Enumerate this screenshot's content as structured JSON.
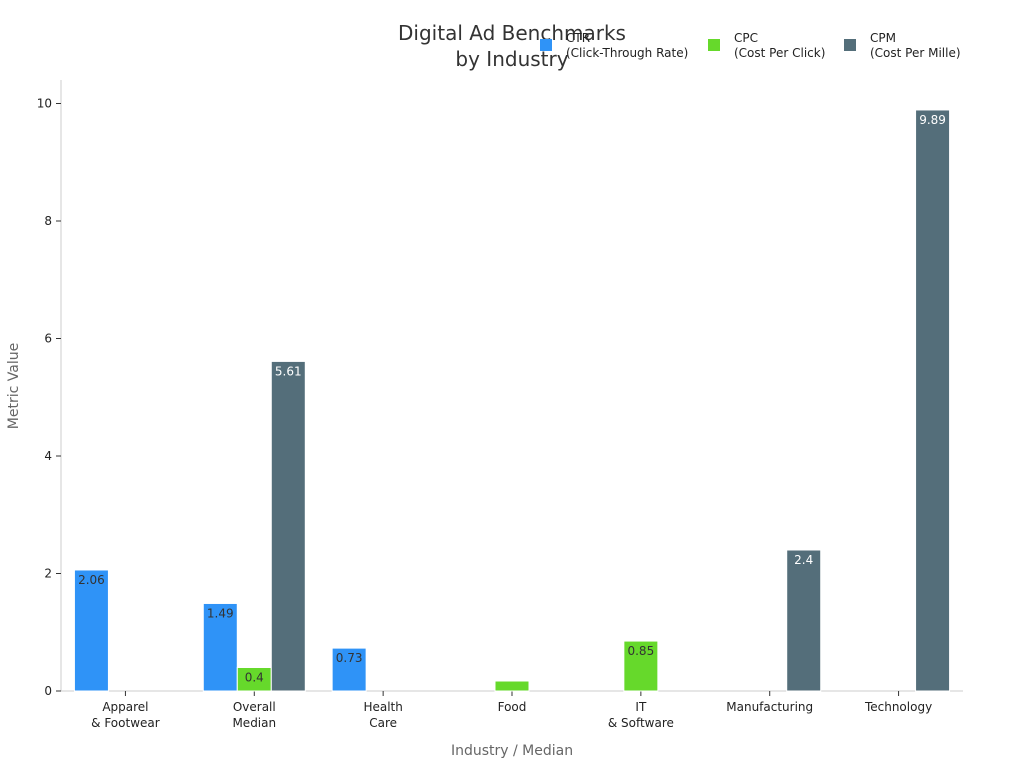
{
  "chart_data": {
    "type": "bar",
    "title": [
      "Digital Ad Benchmarks",
      "by Industry"
    ],
    "xlabel": "Industry / Median",
    "ylabel": "Metric Value",
    "ylim": [
      0,
      10.4
    ],
    "yticks": [
      0,
      2,
      4,
      6,
      8,
      10
    ],
    "grid": false,
    "legend_position": "top-right",
    "categories": [
      [
        "Apparel",
        "& Footwear"
      ],
      [
        "Overall",
        "Median"
      ],
      [
        "Health",
        "Care"
      ],
      [
        "Food"
      ],
      [
        "IT",
        "& Software"
      ],
      [
        "Manufacturing"
      ],
      [
        "Technology"
      ]
    ],
    "series": [
      {
        "name": [
          "CTR",
          "(Click-Through Rate)"
        ],
        "color": "#2F93F7",
        "label_color": "#333333",
        "values": [
          2.06,
          1.49,
          0.73,
          null,
          null,
          null,
          null
        ]
      },
      {
        "name": [
          "CPC",
          "(Cost Per Click)"
        ],
        "color": "#66D92B",
        "label_color": "#333333",
        "values": [
          null,
          0.4,
          null,
          0.17,
          0.85,
          null,
          null
        ]
      },
      {
        "name": [
          "CPM",
          "(Cost Per Mille)"
        ],
        "color": "#546E7A",
        "label_color": "#ffffff",
        "values": [
          null,
          5.61,
          null,
          null,
          null,
          2.4,
          9.89
        ]
      }
    ],
    "data_labels": [
      [
        "2.06",
        "1.49",
        "0.73",
        null,
        null,
        null,
        null
      ],
      [
        null,
        "0.4",
        null,
        "",
        "0.85",
        null,
        null
      ],
      [
        null,
        "5.61",
        null,
        null,
        null,
        "2.4",
        "9.89"
      ]
    ]
  }
}
